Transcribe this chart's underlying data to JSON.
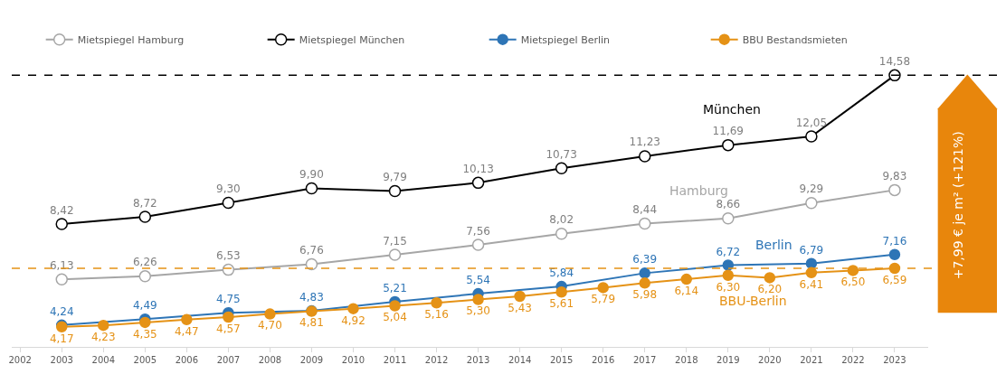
{
  "chart_data": {
    "type": "line",
    "xlim": [
      2001.8,
      2023.8
    ],
    "xticks": [
      2002,
      2003,
      2004,
      2005,
      2006,
      2007,
      2008,
      2009,
      2010,
      2011,
      2012,
      2013,
      2014,
      2015,
      2016,
      2017,
      2018,
      2019,
      2020,
      2021,
      2022,
      2023
    ],
    "series": [
      {
        "name": "Mietspiegel Hamburg",
        "color": "#a6a6a6",
        "x": [
          2003,
          2005,
          2007,
          2009,
          2011,
          2013,
          2015,
          2017,
          2019,
          2021,
          2023
        ],
        "values": [
          6.13,
          6.26,
          6.53,
          6.76,
          7.15,
          7.56,
          8.02,
          8.44,
          8.66,
          9.29,
          9.83
        ],
        "value_labels": [
          "6,13",
          "6,26",
          "6,53",
          "6,76",
          "7,15",
          "7,56",
          "8,02",
          "8,44",
          "8,66",
          "9,29",
          "9,83"
        ]
      },
      {
        "name": "Mietspiegel München",
        "color": "#000000",
        "x": [
          2003,
          2005,
          2007,
          2009,
          2011,
          2013,
          2015,
          2017,
          2019,
          2021,
          2023
        ],
        "values": [
          8.42,
          8.72,
          9.3,
          9.9,
          9.79,
          10.13,
          10.73,
          11.23,
          11.69,
          12.05,
          14.58
        ],
        "value_labels": [
          "8,42",
          "8,72",
          "9,30",
          "9,90",
          "9,79",
          "10,13",
          "10,73",
          "11,23",
          "11,69",
          "12,05",
          "14,58"
        ]
      },
      {
        "name": "Mietspiegel Berlin",
        "color": "#2e75b6",
        "x": [
          2003,
          2005,
          2007,
          2009,
          2011,
          2013,
          2015,
          2017,
          2019,
          2021,
          2023
        ],
        "values": [
          4.24,
          4.49,
          4.75,
          4.83,
          5.21,
          5.54,
          5.84,
          6.39,
          6.72,
          6.79,
          7.16
        ],
        "value_labels": [
          "4,24",
          "4,49",
          "4,75",
          "4,83",
          "5,21",
          "5,54",
          "5,84",
          "6,39",
          "6,72",
          "6,79",
          "7,16"
        ]
      },
      {
        "name": "BBU Bestandsmieten",
        "color": "#e59216",
        "x": [
          2003,
          2004,
          2005,
          2006,
          2007,
          2008,
          2009,
          2010,
          2011,
          2012,
          2013,
          2014,
          2015,
          2016,
          2017,
          2018,
          2019,
          2020,
          2021,
          2022,
          2023
        ],
        "values": [
          4.17,
          4.23,
          4.35,
          4.47,
          4.57,
          4.7,
          4.81,
          4.92,
          5.04,
          5.16,
          5.3,
          5.43,
          5.61,
          5.79,
          5.98,
          6.14,
          6.3,
          6.2,
          6.41,
          6.5,
          6.59
        ],
        "value_labels": [
          "4,17",
          "4,23",
          "4,35",
          "4,47",
          "4,57",
          "4,70",
          "4,81",
          "4,92",
          "5,04",
          "5,16",
          "5,30",
          "5,43",
          "5,61",
          "5,79",
          "5,98",
          "6,14",
          "6,30",
          "6,20",
          "6,41",
          "6,50",
          "6,59"
        ]
      }
    ],
    "annotations": [
      "München",
      "Hamburg",
      "Berlin",
      "BBU-Berlin",
      "+7,99 € je m² (+121%)"
    ],
    "ref_lines": [
      {
        "axis": "y",
        "value": 6.59,
        "color": "#e59216",
        "line_style": "dashed"
      },
      {
        "axis": "y",
        "value": 14.58,
        "color": "#000000",
        "line_style": "dashed"
      }
    ],
    "marker": "circle",
    "legend": "top left"
  }
}
